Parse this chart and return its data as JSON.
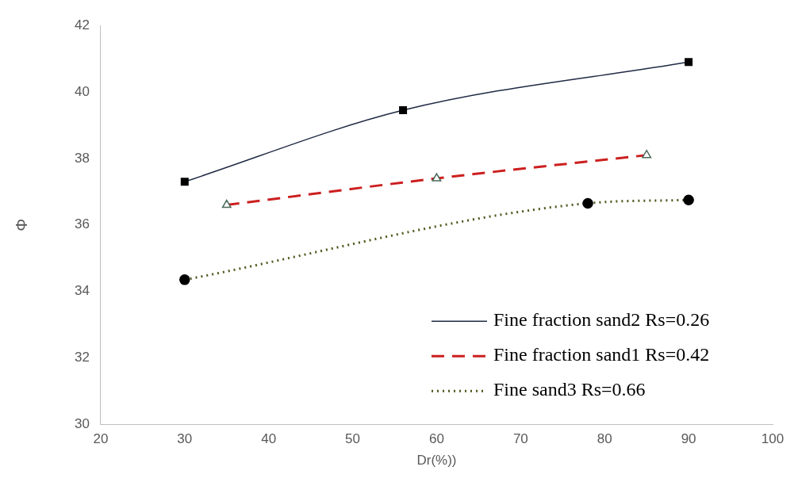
{
  "chart_data": {
    "type": "line",
    "xlabel": "Dr(%))",
    "ylabel": "Φ",
    "xlim": [
      20,
      100
    ],
    "xticks": [
      20,
      30,
      40,
      50,
      60,
      70,
      80,
      90,
      100
    ],
    "ylim": [
      30,
      42
    ],
    "yticks": [
      30,
      32,
      34,
      36,
      38,
      40,
      42
    ],
    "grid": false,
    "legend": "bottom right",
    "series": [
      {
        "name": "Fine fraction sand2 Rs=0.26",
        "color": "#1f2a44",
        "x": [
          30,
          56,
          90
        ],
        "values": [
          37.3,
          39.45,
          40.9
        ],
        "marker": "square",
        "line_style": "solid"
      },
      {
        "name": "Fine fraction sand1 Rs=0.42",
        "color": "#cc1f1f",
        "x": [
          35,
          60,
          85
        ],
        "values": [
          36.6,
          37.4,
          38.1
        ],
        "marker": "triangle",
        "line_style": "dashed"
      },
      {
        "name": "Fine sand3 Rs=0.66",
        "color": "#4d5a1f",
        "x": [
          30,
          78,
          90
        ],
        "values": [
          34.35,
          36.65,
          36.75
        ],
        "marker": "circle",
        "line_style": "dotted"
      }
    ]
  }
}
